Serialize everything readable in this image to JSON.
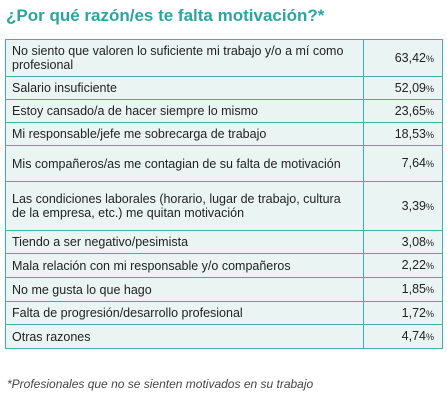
{
  "title": "¿Por qué razón/es te falta motivación?*",
  "rows": [
    {
      "label": "No siento que valoren lo suficiente mi trabajo y/o a mí como profesional",
      "value": "63,42",
      "unit": "%"
    },
    {
      "label": "Salario insuficiente",
      "value": "52,09",
      "unit": "%"
    },
    {
      "label": "Estoy cansado/a de hacer siempre lo mismo",
      "value": "23,65",
      "unit": "%"
    },
    {
      "label": "Mi responsable/jefe me sobrecarga de trabajo",
      "value": "18,53",
      "unit": "%"
    },
    {
      "label": "Mis compañeros/as me contagian de su falta de motivación",
      "value": "7,64",
      "unit": "%"
    },
    {
      "label": "Las condiciones laborales (horario, lugar de trabajo, cultura de la empresa, etc.) me quitan motivación",
      "value": "3,39",
      "unit": "%"
    },
    {
      "label": "Tiendo a ser negativo/pesimista",
      "value": "3,08",
      "unit": "%"
    },
    {
      "label": "Mala relación con mi responsable y/o compañeros",
      "value": "2,22",
      "unit": "%"
    },
    {
      "label": "No me gusta lo que hago",
      "value": "1,85",
      "unit": "%"
    },
    {
      "label": "Falta de progresión/desarrollo profesional",
      "value": "1,72",
      "unit": "%"
    },
    {
      "label": "Otras razones",
      "value": "4,74",
      "unit": "%"
    }
  ],
  "footnote": "*Profesionales que no se sienten motivados en su trabajo",
  "colors": {
    "title": "#2aa6a0",
    "border": "#3fb0a6",
    "row_background": "#eaf5f3"
  }
}
